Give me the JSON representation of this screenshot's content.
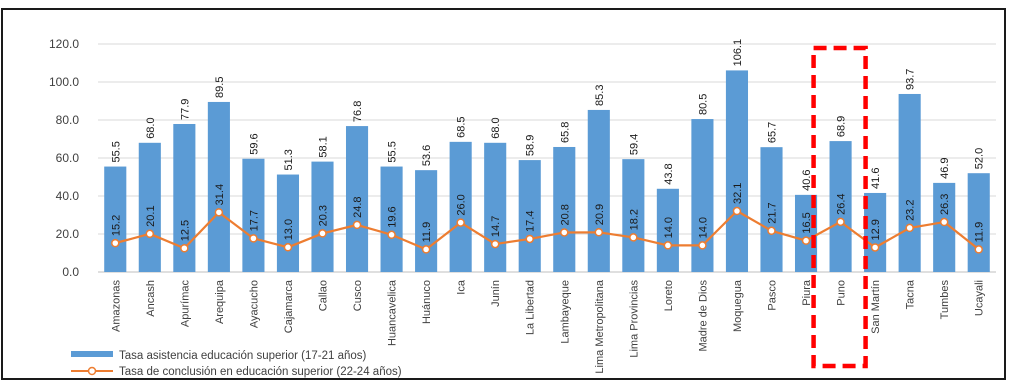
{
  "chart_data": {
    "type": "bar",
    "categories": [
      "Amazonas",
      "Ancash",
      "Apurímac",
      "Arequipa",
      "Ayacucho",
      "Cajamarca",
      "Callao",
      "Cusco",
      "Huancavelica",
      "Huánuco",
      "Ica",
      "Junín",
      "La Libertad",
      "Lambayeque",
      "Lima Metropolitana",
      "Lima Provincias",
      "Loreto",
      "Madre de Dios",
      "Moquegua",
      "Pasco",
      "Piura",
      "Puno",
      "San Martín",
      "Tacna",
      "Tumbes",
      "Ucayali"
    ],
    "series": [
      {
        "name": "Tasa asistencia educación superior (17-21 años)",
        "type": "bar",
        "values": [
          55.5,
          68.0,
          77.9,
          89.5,
          59.6,
          51.3,
          58.1,
          76.8,
          55.5,
          53.6,
          68.5,
          68.0,
          58.9,
          65.8,
          85.3,
          59.4,
          43.8,
          80.5,
          106.1,
          65.7,
          40.6,
          68.9,
          41.6,
          93.7,
          46.9,
          52.0
        ],
        "value_labels": [
          "55.5",
          "68.0",
          "77.9",
          "89.5",
          "59.6",
          "51.3",
          "58.1",
          "76.8",
          "55.5",
          "53.6",
          "68.5",
          "68.0",
          "58.9",
          "65.8",
          "85.3",
          "59.4",
          "43.8",
          "80.5",
          "106.1",
          "65.7",
          "40.6",
          "68.9",
          "41.6",
          "93.7",
          "46.9",
          "52.0"
        ]
      },
      {
        "name": "Tasa de conclusión en educación superior (22-24 años)",
        "type": "line",
        "values": [
          15.2,
          20.1,
          12.5,
          31.4,
          17.7,
          13.0,
          20.3,
          24.8,
          19.6,
          11.9,
          26.0,
          14.7,
          17.4,
          20.8,
          20.9,
          18.2,
          14.0,
          14.0,
          32.1,
          21.7,
          16.5,
          26.4,
          12.9,
          23.2,
          26.3,
          11.9
        ],
        "value_labels": [
          "15.2",
          "20.1",
          "12.5",
          "31.4",
          "17.7",
          "13.0",
          "20.3",
          "24.8",
          "19.6",
          "11.9",
          "26.0",
          "14.7",
          "17.4",
          "20.8",
          "20.9",
          "18.2",
          "14.0",
          "14.0",
          "32.1",
          "21.7",
          "16.5",
          "26.4",
          "12.9",
          "23.2",
          "26.3",
          "11.9"
        ]
      }
    ],
    "ylim": [
      0,
      120
    ],
    "yticks": [
      0,
      20,
      40,
      60,
      80,
      100,
      120
    ],
    "ytick_labels": [
      "0.0",
      "20.0",
      "40.0",
      "60.0",
      "80.0",
      "100.0",
      "120.0"
    ],
    "grid": true,
    "legend_position": "bottom-left",
    "highlight": {
      "category": "Puno",
      "style": "red dashed rectangle"
    },
    "colors": {
      "bar": "#5b9bd5",
      "line": "#ed7d31",
      "grid": "#d9d9d9",
      "axis": "#bfbfbf",
      "highlight": "#ff0000",
      "frame": "#1a1a1a"
    }
  }
}
